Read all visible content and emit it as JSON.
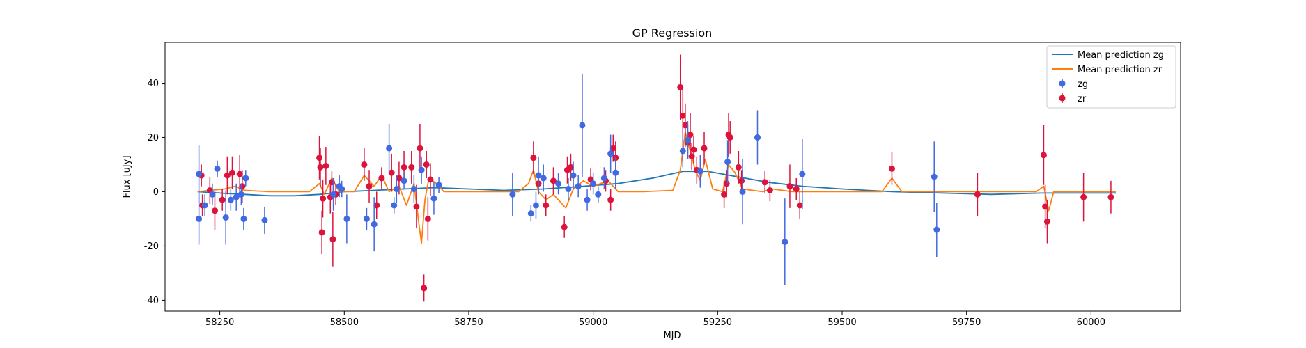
{
  "chart_data": {
    "type": "scatter",
    "title": "GP Regression",
    "xlabel": "MJD",
    "ylabel": "Flux [uJy]",
    "xlim": [
      58140,
      60180
    ],
    "ylim": [
      -44,
      55
    ],
    "xticks": [
      58250,
      58500,
      58750,
      59000,
      59250,
      59500,
      59750,
      60000
    ],
    "yticks": [
      -40,
      -20,
      0,
      20,
      40
    ],
    "legend_position": "top-right",
    "colors": {
      "zg_line": "#1f77b4",
      "zr_line": "#ff7f0e",
      "zg_points": "#4169e1",
      "zr_points": "#dc143c"
    },
    "legend": [
      "Mean prediction zg",
      "Mean prediction zr",
      "zg",
      "zr"
    ],
    "series": [
      {
        "name": "zg",
        "kind": "errorbar",
        "points": [
          [
            58208,
            6.5,
            10.5
          ],
          [
            58208,
            -10,
            9.5
          ],
          [
            58220,
            -5,
            4
          ],
          [
            58235,
            -1,
            4
          ],
          [
            58245,
            8.5,
            3
          ],
          [
            58262,
            -9.5,
            10
          ],
          [
            58272,
            -3,
            4
          ],
          [
            58283,
            -2,
            5
          ],
          [
            58293,
            -1,
            4
          ],
          [
            58298,
            -10,
            4
          ],
          [
            58302,
            5,
            3
          ],
          [
            58340,
            -10.5,
            5
          ],
          [
            58478,
            -1,
            6
          ],
          [
            58490,
            2,
            4
          ],
          [
            58495,
            1,
            3
          ],
          [
            58505,
            -10,
            9
          ],
          [
            58545,
            -10,
            4
          ],
          [
            58560,
            -12,
            10
          ],
          [
            58590,
            16,
            9
          ],
          [
            58600,
            -5,
            3
          ],
          [
            58605,
            1,
            5
          ],
          [
            58620,
            4,
            3
          ],
          [
            58640,
            1,
            5
          ],
          [
            58655,
            8,
            5
          ],
          [
            58680,
            -2.5,
            6
          ],
          [
            58690,
            2.5,
            3
          ],
          [
            58838,
            -1,
            8
          ],
          [
            58875,
            -8,
            3
          ],
          [
            58885,
            -5,
            5
          ],
          [
            58890,
            6,
            7
          ],
          [
            58900,
            5,
            5
          ],
          [
            58930,
            3,
            4
          ],
          [
            58950,
            1,
            4
          ],
          [
            58960,
            6,
            5
          ],
          [
            58970,
            2,
            4
          ],
          [
            58978,
            24.5,
            19
          ],
          [
            58988,
            -3,
            4
          ],
          [
            59000,
            3,
            4
          ],
          [
            59010,
            -1,
            3
          ],
          [
            59022,
            5,
            4
          ],
          [
            59035,
            14,
            7
          ],
          [
            59045,
            7,
            6
          ],
          [
            59180,
            15,
            6
          ],
          [
            59190,
            19,
            7
          ],
          [
            59215,
            7.5,
            6
          ],
          [
            59270,
            11,
            8
          ],
          [
            59300,
            0,
            12
          ],
          [
            59330,
            20,
            10
          ],
          [
            59385,
            -18.5,
            16
          ],
          [
            59420,
            6.5,
            13
          ],
          [
            59685,
            5.5,
            13
          ],
          [
            59690,
            -14,
            10
          ]
        ]
      },
      {
        "name": "zr",
        "kind": "errorbar",
        "points": [
          [
            58213,
            6,
            4
          ],
          [
            58215,
            -5,
            4
          ],
          [
            58230,
            0.5,
            5
          ],
          [
            58240,
            -7,
            7
          ],
          [
            58255,
            -3,
            4
          ],
          [
            58265,
            6,
            7
          ],
          [
            58275,
            7,
            6
          ],
          [
            58290,
            6.5,
            7
          ],
          [
            58295,
            2,
            6
          ],
          [
            58450,
            12.5,
            8
          ],
          [
            58452,
            9,
            7
          ],
          [
            58455,
            -15,
            8
          ],
          [
            58457,
            -2.5,
            7
          ],
          [
            58463,
            9.5,
            7
          ],
          [
            58472,
            -2,
            6
          ],
          [
            58475,
            3.5,
            4
          ],
          [
            58477,
            -17.5,
            10
          ],
          [
            58483,
            -1,
            4
          ],
          [
            58540,
            10,
            6
          ],
          [
            58550,
            2,
            6
          ],
          [
            58565,
            -5,
            5
          ],
          [
            58575,
            5,
            4
          ],
          [
            58595,
            7,
            7
          ],
          [
            58610,
            5,
            6
          ],
          [
            58620,
            9,
            6
          ],
          [
            58635,
            9,
            6
          ],
          [
            58645,
            -5.5,
            8
          ],
          [
            58652,
            16,
            9
          ],
          [
            58665,
            10,
            5
          ],
          [
            58668,
            -10,
            8
          ],
          [
            58660,
            -35.5,
            5
          ],
          [
            58673,
            4.5,
            6
          ],
          [
            58880,
            12.5,
            6
          ],
          [
            58890,
            3,
            4
          ],
          [
            58905,
            -5,
            4
          ],
          [
            58920,
            4,
            5
          ],
          [
            58942,
            -13,
            4
          ],
          [
            58948,
            8,
            5
          ],
          [
            58955,
            9,
            5
          ],
          [
            58995,
            4.5,
            4
          ],
          [
            59025,
            4,
            4
          ],
          [
            59035,
            -3,
            4
          ],
          [
            59040,
            16,
            5
          ],
          [
            59045,
            12.5,
            6
          ],
          [
            59175,
            38.5,
            12
          ],
          [
            59180,
            28,
            10
          ],
          [
            59185,
            24.5,
            8
          ],
          [
            59190,
            18,
            6
          ],
          [
            59195,
            21,
            8
          ],
          [
            59198,
            13,
            5
          ],
          [
            59202,
            15.5,
            5
          ],
          [
            59208,
            8,
            5
          ],
          [
            59223,
            16,
            6
          ],
          [
            59263,
            -1,
            5
          ],
          [
            59268,
            3,
            5
          ],
          [
            59272,
            21,
            8
          ],
          [
            59275,
            20,
            6
          ],
          [
            59292,
            9,
            6
          ],
          [
            59298,
            4,
            4
          ],
          [
            59345,
            3.5,
            4
          ],
          [
            59355,
            0.5,
            4
          ],
          [
            59395,
            2,
            8
          ],
          [
            59408,
            1,
            4
          ],
          [
            59415,
            -5,
            5
          ],
          [
            59600,
            8.5,
            6
          ],
          [
            59772,
            -1,
            8
          ],
          [
            59905,
            13.5,
            11
          ],
          [
            59908,
            -5.5,
            8
          ],
          [
            59912,
            -11,
            8
          ],
          [
            59985,
            -2,
            9
          ],
          [
            60040,
            -2,
            6
          ]
        ]
      },
      {
        "name": "Mean prediction zg",
        "kind": "line",
        "points": [
          [
            58205,
            0
          ],
          [
            58250,
            -0.5
          ],
          [
            58300,
            -1
          ],
          [
            58350,
            -1.5
          ],
          [
            58400,
            -1.5
          ],
          [
            58450,
            -1
          ],
          [
            58500,
            0
          ],
          [
            58560,
            0.5
          ],
          [
            58620,
            1
          ],
          [
            58680,
            1.5
          ],
          [
            58750,
            1
          ],
          [
            58820,
            0.5
          ],
          [
            58900,
            1
          ],
          [
            58980,
            2
          ],
          [
            59050,
            3
          ],
          [
            59120,
            5
          ],
          [
            59180,
            7.5
          ],
          [
            59230,
            7.5
          ],
          [
            59290,
            5.5
          ],
          [
            59350,
            3.5
          ],
          [
            59420,
            2
          ],
          [
            59500,
            1
          ],
          [
            59600,
            0
          ],
          [
            59700,
            -0.5
          ],
          [
            59800,
            -1
          ],
          [
            59900,
            -0.5
          ],
          [
            60000,
            -0.5
          ],
          [
            60050,
            -0.5
          ]
        ]
      },
      {
        "name": "Mean prediction zr",
        "kind": "line",
        "points": [
          [
            58205,
            0
          ],
          [
            58230,
            0.5
          ],
          [
            58260,
            1
          ],
          [
            58280,
            2
          ],
          [
            58300,
            0.5
          ],
          [
            58350,
            0
          ],
          [
            58430,
            0
          ],
          [
            58450,
            3
          ],
          [
            58460,
            -1
          ],
          [
            58475,
            5
          ],
          [
            58490,
            0
          ],
          [
            58520,
            0
          ],
          [
            58540,
            6
          ],
          [
            58560,
            2
          ],
          [
            58575,
            6
          ],
          [
            58590,
            0
          ],
          [
            58610,
            2
          ],
          [
            58625,
            -5
          ],
          [
            58640,
            3
          ],
          [
            58650,
            -12
          ],
          [
            58655,
            -19
          ],
          [
            58662,
            -3
          ],
          [
            58670,
            5
          ],
          [
            58685,
            3
          ],
          [
            58700,
            0
          ],
          [
            58850,
            0
          ],
          [
            58870,
            3
          ],
          [
            58880,
            8
          ],
          [
            58890,
            0
          ],
          [
            58905,
            -3
          ],
          [
            58920,
            -1
          ],
          [
            58945,
            -6
          ],
          [
            58960,
            1
          ],
          [
            58980,
            4
          ],
          [
            59000,
            2
          ],
          [
            59030,
            4
          ],
          [
            59050,
            0
          ],
          [
            59100,
            0
          ],
          [
            59160,
            0.5
          ],
          [
            59175,
            8
          ],
          [
            59185,
            22
          ],
          [
            59195,
            15
          ],
          [
            59205,
            8
          ],
          [
            59215,
            4
          ],
          [
            59225,
            12
          ],
          [
            59240,
            1
          ],
          [
            59260,
            0
          ],
          [
            59272,
            10
          ],
          [
            59285,
            7
          ],
          [
            59300,
            1
          ],
          [
            59340,
            0
          ],
          [
            59360,
            1
          ],
          [
            59400,
            0
          ],
          [
            59580,
            0
          ],
          [
            59600,
            5
          ],
          [
            59620,
            0
          ],
          [
            59890,
            0
          ],
          [
            59905,
            2
          ],
          [
            59915,
            -7
          ],
          [
            59925,
            0
          ],
          [
            60050,
            0
          ]
        ]
      }
    ]
  }
}
